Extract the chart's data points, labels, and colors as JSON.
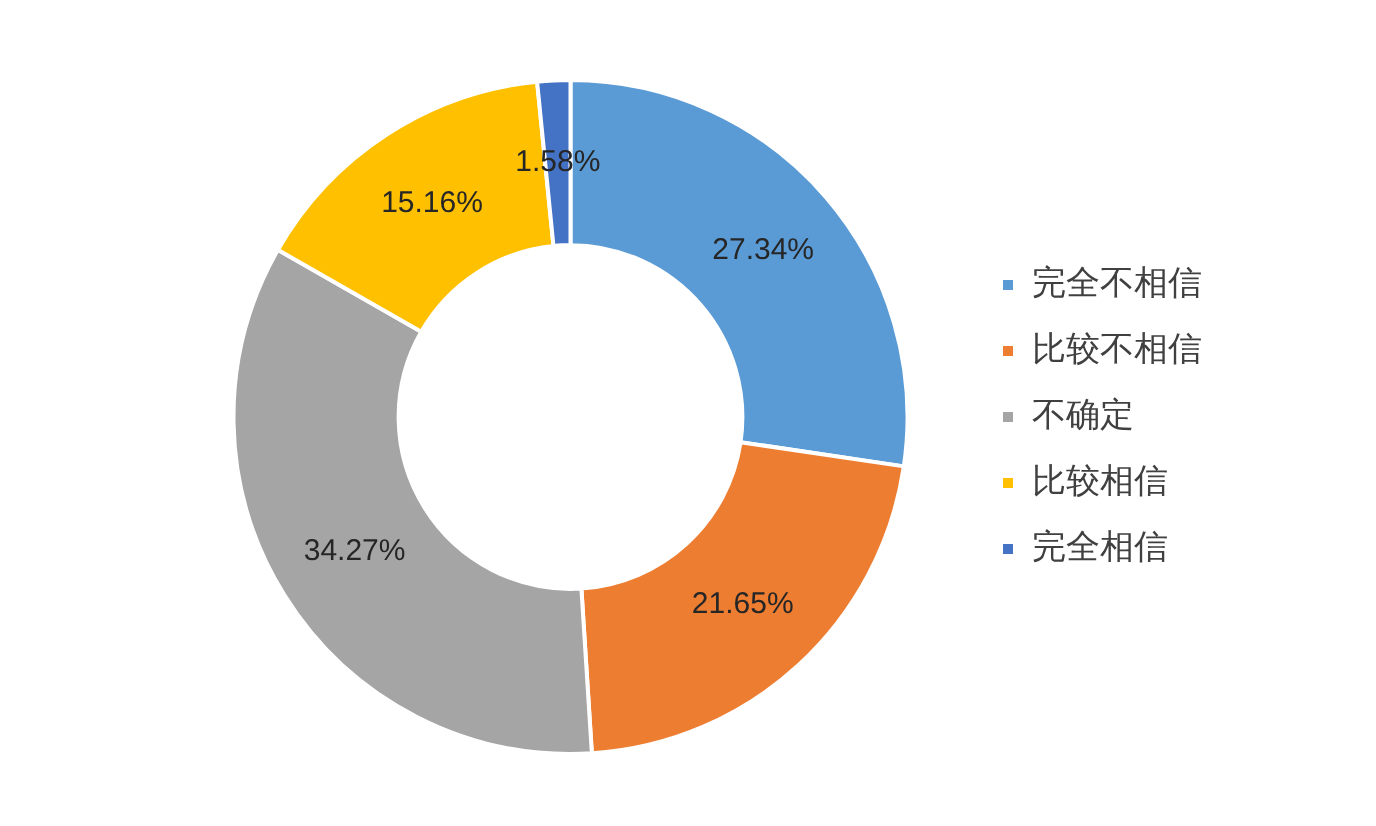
{
  "chart_data": {
    "type": "donut",
    "categories": [
      "完全不相信",
      "比较不相信",
      "不确定",
      "比较相信",
      "完全相信"
    ],
    "values": [
      27.34,
      21.65,
      34.27,
      15.16,
      1.58
    ],
    "colors": [
      "#5b9bd5",
      "#ed7d31",
      "#a5a5a5",
      "#ffc000",
      "#4472c4"
    ],
    "value_labels": [
      "27.34%",
      "21.65%",
      "34.27%",
      "15.16%",
      "1.58%"
    ],
    "legend": "right"
  }
}
